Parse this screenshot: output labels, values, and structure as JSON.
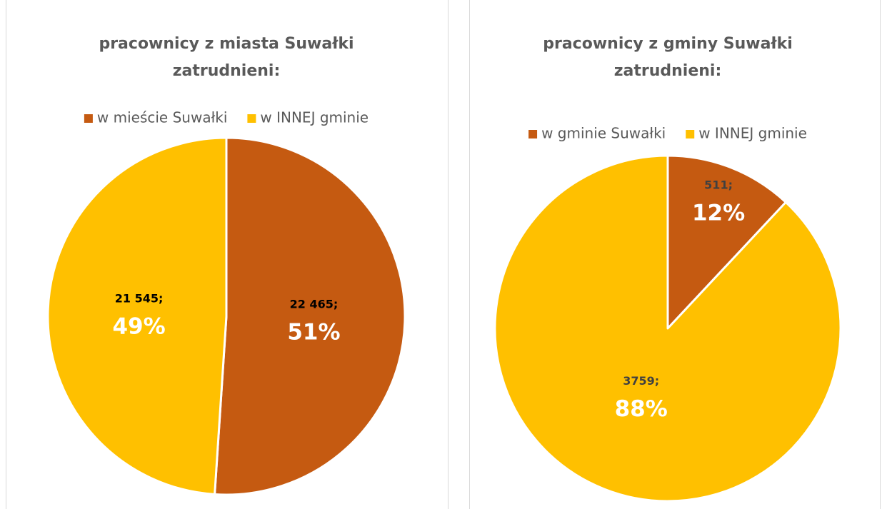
{
  "chart_data": [
    {
      "type": "pie",
      "title": [
        "pracownicy z miasta Suwałki",
        "zatrudnieni:"
      ],
      "categories": [
        "w mieście Suwałki",
        "w INNEJ gminie"
      ],
      "colors": [
        "#c55a11",
        "#ffc000"
      ],
      "values": [
        22465,
        21545
      ],
      "value_labels": [
        "22 465;",
        "21 545;"
      ],
      "percents": [
        51,
        49
      ],
      "percent_labels": [
        "51%",
        "49%"
      ]
    },
    {
      "type": "pie",
      "title": [
        "pracownicy z gminy Suwałki",
        "zatrudnieni:"
      ],
      "categories": [
        "w gminie Suwałki",
        "w INNEJ gminie"
      ],
      "colors": [
        "#c55a11",
        "#ffc000"
      ],
      "values": [
        511,
        3759
      ],
      "value_labels": [
        "511;",
        "3759;"
      ],
      "percents": [
        12,
        88
      ],
      "percent_labels": [
        "12%",
        "88%"
      ]
    }
  ]
}
